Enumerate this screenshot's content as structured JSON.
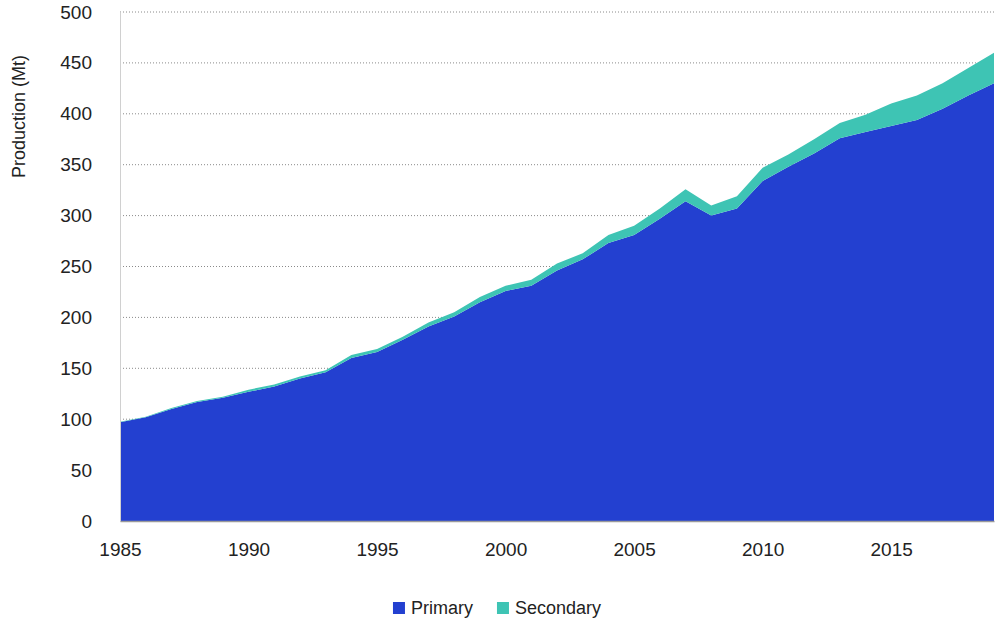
{
  "chart_data": {
    "type": "area",
    "stacked": true,
    "grid": true,
    "legend": "bottom",
    "y_label": "Production (Mt)",
    "x": [
      1985,
      1986,
      1987,
      1988,
      1989,
      1990,
      1991,
      1992,
      1993,
      1994,
      1995,
      1996,
      1997,
      1998,
      1999,
      2000,
      2001,
      2002,
      2003,
      2004,
      2005,
      2006,
      2007,
      2008,
      2009,
      2010,
      2011,
      2012,
      2013,
      2014,
      2015,
      2016,
      2017,
      2018,
      2019
    ],
    "series": [
      {
        "name": "Primary",
        "color": "#2340d0",
        "values": [
          97,
          102,
          110,
          117,
          121,
          127,
          132,
          140,
          146,
          160,
          166,
          178,
          191,
          201,
          215,
          226,
          231,
          246,
          257,
          273,
          281,
          297,
          314,
          300,
          307,
          334,
          348,
          361,
          376,
          382,
          388,
          394,
          405,
          418,
          430
        ]
      },
      {
        "name": "Secondary",
        "color": "#3ec4b4",
        "values": [
          0.5,
          0.5,
          1,
          1,
          1,
          2,
          2,
          2,
          2,
          3,
          3,
          3,
          4,
          4,
          5,
          5,
          6,
          7,
          6,
          8,
          9,
          10,
          12,
          10,
          12,
          13,
          12,
          14,
          15,
          17,
          22,
          24,
          25,
          27,
          30
        ]
      }
    ],
    "xlim": [
      1985,
      2019
    ],
    "xticks": [
      1985,
      1990,
      1995,
      2000,
      2005,
      2010,
      2015
    ],
    "ylim": [
      0,
      500
    ],
    "yticks": [
      0,
      50,
      100,
      150,
      200,
      250,
      300,
      350,
      400,
      450,
      500
    ]
  }
}
